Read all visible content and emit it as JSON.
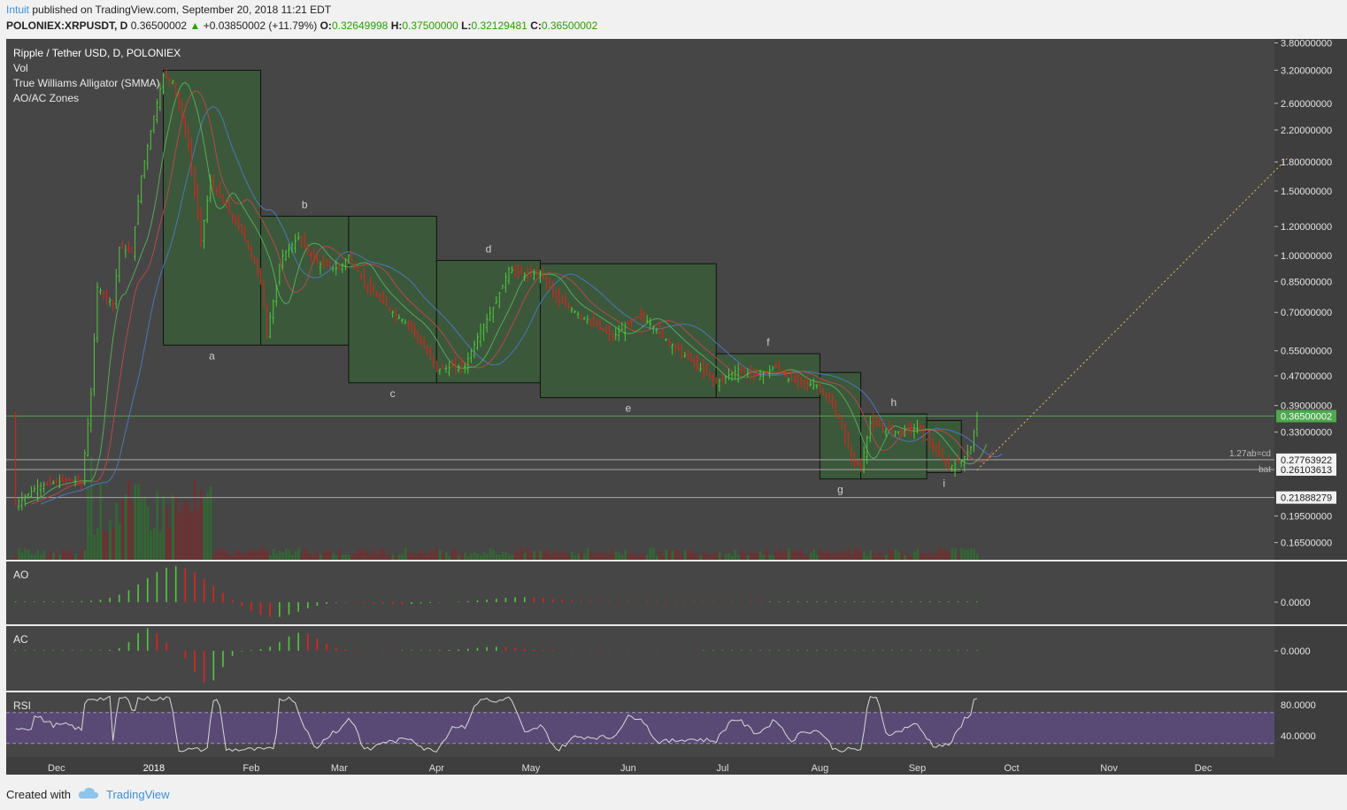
{
  "header": {
    "author": "Intuit",
    "published": " published on TradingView.com, September 20, 2018 11:21 EDT",
    "symbol": "POLONIEX:XRPUSDT, D",
    "last": "0.36500002",
    "change": "+0.03850002 (+11.79%)",
    "o_label": "O:",
    "o": "0.32649998",
    "h_label": "H:",
    "h": "0.37500000",
    "l_label": "L:",
    "l": "0.32129481",
    "c_label": "C:",
    "c": "0.36500002"
  },
  "legend": [
    "Ripple / Tether USD, D, POLONIEX",
    "Vol",
    "True Williams Alligator (SMMA)",
    "AO/AC Zones"
  ],
  "footer": {
    "created_with": "Created with",
    "brand": "TradingView"
  },
  "colors": {
    "background": "#464646",
    "up": "#4fc93a",
    "down": "#e0231c",
    "box": "#3a5a3a",
    "alligator_blue": "#4a79b8",
    "alligator_red": "#b8484a",
    "alligator_green": "#5aa85a",
    "rsi_band": "#5b4a7a",
    "accent": "#3d8fd6"
  },
  "chart_data": {
    "type": "candlestick",
    "symbol": "Ripple / Tether USD",
    "scale": "log",
    "y_ticks": [
      3.8,
      3.2,
      2.6,
      2.2,
      1.8,
      1.5,
      1.2,
      1.0,
      0.85,
      0.7,
      0.55,
      0.47,
      0.39,
      0.33,
      0.195,
      0.165
    ],
    "y_tick_labels": [
      "3.80000000",
      "3.20000000",
      "2.60000000",
      "2.20000000",
      "1.80000000",
      "1.50000000",
      "1.20000000",
      "1.00000000",
      "0.85000000",
      "0.70000000",
      "0.55000000",
      "0.47000000",
      "0.39000000",
      "0.33000000",
      "0.19500000",
      "0.16500000"
    ],
    "x_labels": [
      "Dec",
      "2018",
      "Feb",
      "Mar",
      "Apr",
      "May",
      "Jun",
      "Jul",
      "Aug",
      "Sep",
      "Oct",
      "Nov",
      "Dec"
    ],
    "x_dates": [
      "2017-12-01",
      "2018-01-01",
      "2018-02-01",
      "2018-03-01",
      "2018-04-01",
      "2018-05-01",
      "2018-06-01",
      "2018-07-01",
      "2018-08-01",
      "2018-09-01",
      "2018-10-01",
      "2018-11-01",
      "2018-12-01"
    ],
    "price_markers": [
      {
        "label": "0.36500002",
        "value": 0.365,
        "style": "current"
      },
      {
        "label": "0.27763922",
        "value": 0.2776,
        "style": "level",
        "note": "1.27ab=cd"
      },
      {
        "label": "0.26103613",
        "value": 0.261,
        "style": "level",
        "note": "bat"
      },
      {
        "label": "0.21888279",
        "value": 0.2189,
        "style": "level"
      }
    ],
    "zones": [
      {
        "label": "a",
        "start": "2018-01-04",
        "end": "2018-02-04",
        "high": 3.2,
        "low": 0.57,
        "label_pos": "below"
      },
      {
        "label": "b",
        "start": "2018-02-04",
        "end": "2018-03-04",
        "high": 1.28,
        "low": 0.57,
        "label_pos": "above"
      },
      {
        "label": "c",
        "start": "2018-03-04",
        "end": "2018-04-01",
        "high": 1.28,
        "low": 0.45,
        "label_pos": "below"
      },
      {
        "label": "d",
        "start": "2018-04-01",
        "end": "2018-05-04",
        "high": 0.97,
        "low": 0.45,
        "label_pos": "above"
      },
      {
        "label": "e",
        "start": "2018-05-04",
        "end": "2018-06-29",
        "high": 0.95,
        "low": 0.41,
        "label_pos": "below"
      },
      {
        "label": "f",
        "start": "2018-06-29",
        "end": "2018-08-01",
        "high": 0.54,
        "low": 0.41,
        "label_pos": "above"
      },
      {
        "label": "g",
        "start": "2018-08-01",
        "end": "2018-08-14",
        "high": 0.48,
        "low": 0.246,
        "label_pos": "below"
      },
      {
        "label": "h",
        "start": "2018-08-14",
        "end": "2018-09-04",
        "high": 0.37,
        "low": 0.246,
        "label_pos": "above"
      },
      {
        "label": "i",
        "start": "2018-09-04",
        "end": "2018-09-15",
        "high": 0.355,
        "low": 0.256,
        "label_pos": "below"
      }
    ],
    "ohlc_path": [
      [
        "2017-11-18",
        0.21
      ],
      [
        "2017-11-25",
        0.235
      ],
      [
        "2017-12-05",
        0.245
      ],
      [
        "2017-12-09",
        0.24
      ],
      [
        "2017-12-12",
        0.42
      ],
      [
        "2017-12-14",
        0.82
      ],
      [
        "2017-12-19",
        0.74
      ],
      [
        "2017-12-21",
        1.05
      ],
      [
        "2017-12-25",
        1.02
      ],
      [
        "2017-12-28",
        1.65
      ],
      [
        "2018-01-01",
        2.4
      ],
      [
        "2018-01-04",
        3.1
      ],
      [
        "2018-01-07",
        3.0
      ],
      [
        "2018-01-12",
        2.0
      ],
      [
        "2018-01-16",
        1.1
      ],
      [
        "2018-01-19",
        1.6
      ],
      [
        "2018-01-24",
        1.35
      ],
      [
        "2018-01-30",
        1.12
      ],
      [
        "2018-02-04",
        0.85
      ],
      [
        "2018-02-06",
        0.62
      ],
      [
        "2018-02-11",
        1.0
      ],
      [
        "2018-02-16",
        1.12
      ],
      [
        "2018-02-22",
        0.95
      ],
      [
        "2018-03-01",
        0.92
      ],
      [
        "2018-03-04",
        1.0
      ],
      [
        "2018-03-10",
        0.82
      ],
      [
        "2018-03-18",
        0.7
      ],
      [
        "2018-03-24",
        0.64
      ],
      [
        "2018-04-01",
        0.49
      ],
      [
        "2018-04-10",
        0.5
      ],
      [
        "2018-04-14",
        0.6
      ],
      [
        "2018-04-20",
        0.75
      ],
      [
        "2018-04-24",
        0.92
      ],
      [
        "2018-04-30",
        0.88
      ],
      [
        "2018-05-04",
        0.9
      ],
      [
        "2018-05-10",
        0.75
      ],
      [
        "2018-05-20",
        0.66
      ],
      [
        "2018-05-27",
        0.6
      ],
      [
        "2018-06-05",
        0.69
      ],
      [
        "2018-06-14",
        0.58
      ],
      [
        "2018-06-22",
        0.51
      ],
      [
        "2018-06-29",
        0.45
      ],
      [
        "2018-07-06",
        0.49
      ],
      [
        "2018-07-13",
        0.47
      ],
      [
        "2018-07-18",
        0.5
      ],
      [
        "2018-07-22",
        0.46
      ],
      [
        "2018-08-01",
        0.44
      ],
      [
        "2018-08-07",
        0.36
      ],
      [
        "2018-08-11",
        0.28
      ],
      [
        "2018-08-14",
        0.265
      ],
      [
        "2018-08-17",
        0.35
      ],
      [
        "2018-08-25",
        0.33
      ],
      [
        "2018-09-01",
        0.34
      ],
      [
        "2018-09-06",
        0.3
      ],
      [
        "2018-09-11",
        0.265
      ],
      [
        "2018-09-15",
        0.275
      ],
      [
        "2018-09-18",
        0.3
      ],
      [
        "2018-09-20",
        0.365
      ]
    ],
    "projection": {
      "from": [
        "2018-09-20",
        0.26
      ],
      "to": [
        "2018-12-28",
        1.85
      ],
      "style": "dotted-yellow"
    },
    "panes": [
      {
        "name": "AO",
        "level_label": "0.0000"
      },
      {
        "name": "AC",
        "level_label": "0.0000"
      },
      {
        "name": "RSI",
        "tick_labels": [
          "80.0000",
          "40.0000"
        ],
        "ticks": [
          80,
          40
        ],
        "band": [
          30,
          70
        ]
      }
    ]
  }
}
